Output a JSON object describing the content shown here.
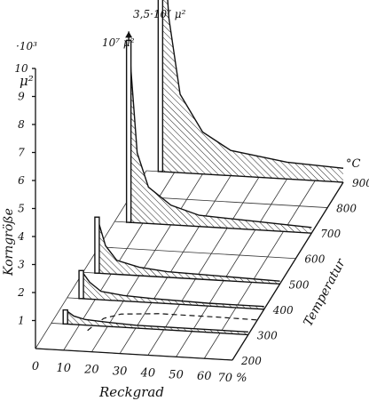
{
  "chart_data": {
    "type": "area",
    "z_axis": {
      "unit_multiplier": "·10³",
      "unit": "μ²",
      "label": "Korngröße",
      "ticks": [
        "1",
        "2",
        "3",
        "4",
        "5",
        "6",
        "7",
        "8",
        "9",
        "10"
      ],
      "range": [
        0,
        10
      ]
    },
    "x_axis": {
      "label": "Reckgrad",
      "ticks": [
        "0",
        "10",
        "20",
        "30",
        "40",
        "50",
        "60",
        "70 %"
      ],
      "range": [
        0,
        70
      ]
    },
    "y_axis": {
      "label": "Temperatur",
      "unit": "°C",
      "ticks": [
        "200",
        "300",
        "400",
        "500",
        "600",
        "700",
        "800",
        "900"
      ],
      "range": [
        200,
        900
      ]
    },
    "series": [
      {
        "temperature": 300,
        "reckgrad": [
          5,
          8,
          12,
          20,
          30,
          50,
          70
        ],
        "korngroesse": [
          0.5,
          0.3,
          0.2,
          0.15,
          0.1,
          0.1,
          0.1
        ]
      },
      {
        "temperature": 400,
        "reckgrad": [
          5,
          8,
          12,
          20,
          30,
          50,
          70
        ],
        "korngroesse": [
          1.0,
          0.6,
          0.3,
          0.2,
          0.15,
          0.1,
          0.1
        ]
      },
      {
        "temperature": 500,
        "reckgrad": [
          5,
          8,
          12,
          20,
          30,
          50,
          70
        ],
        "korngroesse": [
          2.0,
          1.0,
          0.5,
          0.3,
          0.2,
          0.15,
          0.1
        ]
      },
      {
        "temperature": 700,
        "reckgrad": [
          5,
          8,
          12,
          20,
          30,
          50,
          70
        ],
        "korngroesse": [
          6.5,
          2.5,
          1.3,
          0.7,
          0.4,
          0.3,
          0.2
        ]
      },
      {
        "temperature": 900,
        "reckgrad": [
          5,
          8,
          12,
          20,
          30,
          50,
          70
        ],
        "korngroesse": [
          10,
          5.5,
          2.8,
          1.5,
          0.9,
          0.6,
          0.5
        ]
      }
    ],
    "annotations": [
      {
        "text": "10⁷ μ²",
        "temperature": 700
      },
      {
        "text": "3,5·10⁷ μ²",
        "temperature": 900
      }
    ],
    "dashed_boundary": true
  }
}
